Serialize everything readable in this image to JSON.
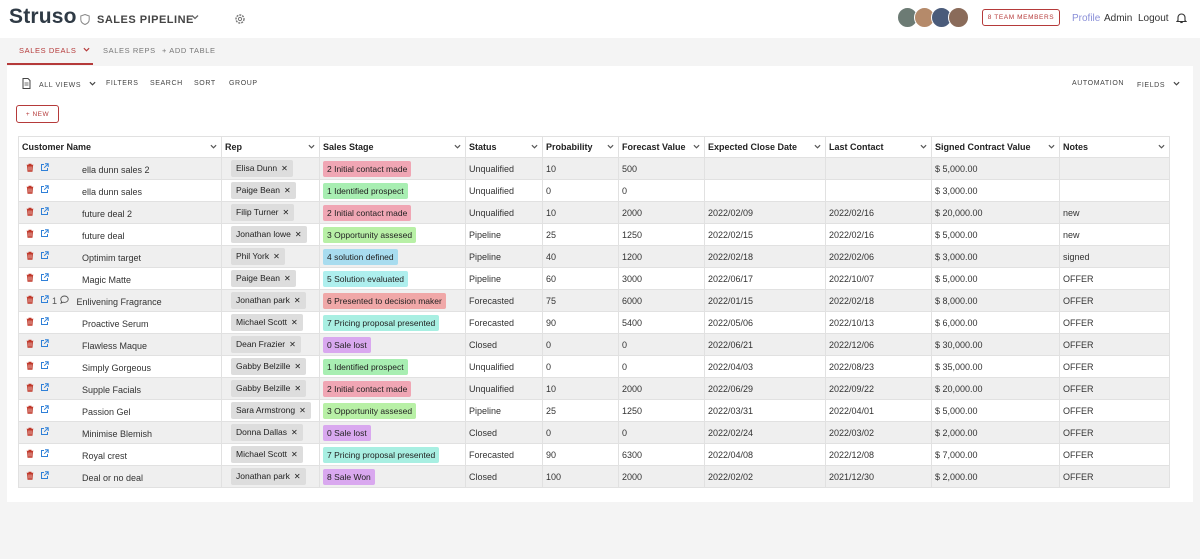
{
  "app": {
    "logo": "Struso",
    "title": "SALES PIPELINE"
  },
  "header": {
    "team_button": "8 TEAM MEMBERS",
    "profile": "Profile",
    "admin": "Admin",
    "logout": "Logout"
  },
  "colors": {
    "accent": "#b53a3a",
    "profile_link": "#8a8fd8",
    "avatars": [
      "#6c7b74",
      "#b58a6a",
      "#4a5b7a",
      "#8a6b5a"
    ]
  },
  "tabs": [
    {
      "label": "SALES DEALS"
    },
    {
      "label": "SALES REPS"
    },
    {
      "label": "+ ADD TABLE"
    }
  ],
  "toolbar": {
    "all_views": "ALL VIEWS",
    "filters": "FILTERS",
    "search": "SEARCH",
    "sort": "SORT",
    "group": "GROUP",
    "automation": "AUTOMATION",
    "fields": "FIELDS",
    "new": "+ NEW"
  },
  "columns": [
    "Customer Name",
    "Rep",
    "Sales Stage",
    "Status",
    "Probability",
    "Forecast Value",
    "Expected Close Date",
    "Last Contact",
    "Signed Contract Value",
    "Notes"
  ],
  "stage_colors": {
    "0": "#d9a8ef",
    "1": "#a8eeb2",
    "2": "#f0a6b4",
    "3": "#b8f0a6",
    "4": "#a8dcef",
    "5": "#aeefee",
    "6": "#f0a8a8",
    "7": "#a8efe2",
    "8": "#d9a8ef"
  },
  "rows": [
    {
      "customer": "ella dunn sales 2",
      "rep": "Elisa Dunn",
      "stage_num": "2",
      "stage": "2 Initial contact made",
      "status": "Unqualified",
      "probability": "10",
      "forecast": "500",
      "close": "",
      "last": "",
      "signed": "$ 5,000.00",
      "notes": "",
      "comment": ""
    },
    {
      "customer": "ella dunn sales",
      "rep": "Paige Bean",
      "stage_num": "1",
      "stage": "1 Identified prospect",
      "status": "Unqualified",
      "probability": "0",
      "forecast": "0",
      "close": "",
      "last": "",
      "signed": "$ 3,000.00",
      "notes": "",
      "comment": ""
    },
    {
      "customer": "future deal 2",
      "rep": "Filip Turner",
      "stage_num": "2",
      "stage": "2 Initial contact made",
      "status": "Unqualified",
      "probability": "10",
      "forecast": "2000",
      "close": "2022/02/09",
      "last": "2022/02/16",
      "signed": "$ 20,000.00",
      "notes": "new",
      "comment": ""
    },
    {
      "customer": "future deal",
      "rep": "Jonathan lowe",
      "stage_num": "3",
      "stage": "3 Opportunity assesed",
      "status": "Pipeline",
      "probability": "25",
      "forecast": "1250",
      "close": "2022/02/15",
      "last": "2022/02/16",
      "signed": "$ 5,000.00",
      "notes": "new",
      "comment": ""
    },
    {
      "customer": "Optimim target",
      "rep": "Phil York",
      "stage_num": "4",
      "stage": "4 solution defined",
      "status": "Pipeline",
      "probability": "40",
      "forecast": "1200",
      "close": "2022/02/18",
      "last": "2022/02/06",
      "signed": "$ 3,000.00",
      "notes": "signed",
      "comment": ""
    },
    {
      "customer": "Magic Matte",
      "rep": "Paige Bean",
      "stage_num": "5",
      "stage": "5 Solution evaluated",
      "status": "Pipeline",
      "probability": "60",
      "forecast": "3000",
      "close": "2022/06/17",
      "last": "2022/10/07",
      "signed": "$ 5,000.00",
      "notes": "OFFER",
      "comment": ""
    },
    {
      "customer": "Enlivening Fragrance",
      "rep": "Jonathan park",
      "stage_num": "6",
      "stage": "6 Presented to decision maker",
      "status": "Forecasted",
      "probability": "75",
      "forecast": "6000",
      "close": "2022/01/15",
      "last": "2022/02/18",
      "signed": "$ 8,000.00",
      "notes": "OFFER",
      "comment": "1"
    },
    {
      "customer": "Proactive Serum",
      "rep": "Michael Scott",
      "stage_num": "7",
      "stage": "7 Pricing proposal presented",
      "status": "Forecasted",
      "probability": "90",
      "forecast": "5400",
      "close": "2022/05/06",
      "last": "2022/10/13",
      "signed": "$ 6,000.00",
      "notes": "OFFER",
      "comment": ""
    },
    {
      "customer": "Flawless Maque",
      "rep": "Dean Frazier",
      "stage_num": "0",
      "stage": "0 Sale lost",
      "status": "Closed",
      "probability": "0",
      "forecast": "0",
      "close": "2022/06/21",
      "last": "2022/12/06",
      "signed": "$ 30,000.00",
      "notes": "OFFER",
      "comment": ""
    },
    {
      "customer": "Simply Gorgeous",
      "rep": "Gabby Belzille",
      "stage_num": "1",
      "stage": "1 Identified prospect",
      "status": "Unqualified",
      "probability": "0",
      "forecast": "0",
      "close": "2022/04/03",
      "last": "2022/08/23",
      "signed": "$ 35,000.00",
      "notes": "OFFER",
      "comment": ""
    },
    {
      "customer": "Supple Facials",
      "rep": "Gabby Belzille",
      "stage_num": "2",
      "stage": "2 Initial contact made",
      "status": "Unqualified",
      "probability": "10",
      "forecast": "2000",
      "close": "2022/06/29",
      "last": "2022/09/22",
      "signed": "$ 20,000.00",
      "notes": "OFFER",
      "comment": ""
    },
    {
      "customer": "Passion Gel",
      "rep": "Sara Armstrong",
      "stage_num": "3",
      "stage": "3 Opportunity assesed",
      "status": "Pipeline",
      "probability": "25",
      "forecast": "1250",
      "close": "2022/03/31",
      "last": "2022/04/01",
      "signed": "$ 5,000.00",
      "notes": "OFFER",
      "comment": ""
    },
    {
      "customer": "Minimise Blemish",
      "rep": "Donna Dallas",
      "stage_num": "0",
      "stage": "0 Sale lost",
      "status": "Closed",
      "probability": "0",
      "forecast": "0",
      "close": "2022/02/24",
      "last": "2022/03/02",
      "signed": "$ 2,000.00",
      "notes": "OFFER",
      "comment": ""
    },
    {
      "customer": "Royal crest",
      "rep": "Michael Scott",
      "stage_num": "7",
      "stage": "7 Pricing proposal presented",
      "status": "Forecasted",
      "probability": "90",
      "forecast": "6300",
      "close": "2022/04/08",
      "last": "2022/12/08",
      "signed": "$ 7,000.00",
      "notes": "OFFER",
      "comment": ""
    },
    {
      "customer": "Deal or no deal",
      "rep": "Jonathan park",
      "stage_num": "8",
      "stage": "8 Sale Won",
      "status": "Closed",
      "probability": "100",
      "forecast": "2000",
      "close": "2022/02/02",
      "last": "2021/12/30",
      "signed": "$ 2,000.00",
      "notes": "OFFER",
      "comment": ""
    }
  ]
}
